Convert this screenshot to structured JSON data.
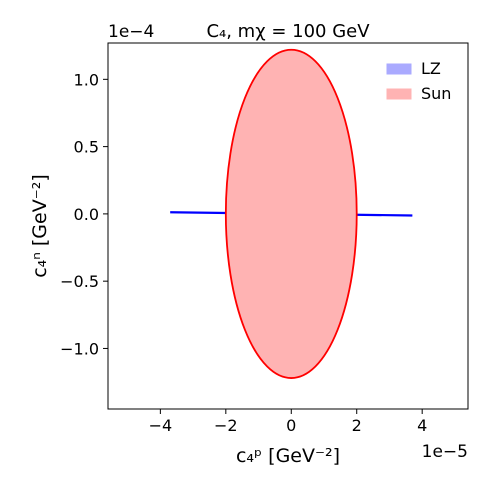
{
  "chart_data": {
    "type": "area",
    "title": "C₄,   mχ = 100 GeV",
    "xlabel": "c₄ᵖ [GeV⁻²]",
    "ylabel": "c₄ⁿ [GeV⁻²]",
    "x_offset_text": "1e−5",
    "y_offset_text": "1e−4",
    "xlim": [
      -5.6e-05,
      5.4e-05
    ],
    "ylim": [
      -0.000145,
      0.000127
    ],
    "x_ticks": [
      -4e-05,
      -2e-05,
      0,
      2e-05,
      4e-05
    ],
    "x_tick_labels": [
      "−4",
      "−2",
      "0",
      "2",
      "4"
    ],
    "y_ticks": [
      0.0001,
      5e-05,
      0,
      -5e-05,
      -0.0001
    ],
    "y_tick_labels": [
      "1.0",
      "0.5",
      "0.0",
      "−0.5",
      "−1.0"
    ],
    "grid": false,
    "legend_position": "top-right",
    "series": [
      {
        "name": "LZ",
        "shape": "line",
        "color": "#0000ff",
        "fill": "#aaaaff",
        "x": [
          -3.7e-05,
          3.7e-05
        ],
        "y": [
          1.2e-06,
          -1.2e-06
        ]
      },
      {
        "name": "Sun",
        "shape": "ellipse",
        "color": "#ff0000",
        "fill": "#ffb3b3",
        "center": [
          0,
          0
        ],
        "x_semi_axis": 2e-05,
        "y_semi_axis": 0.000122
      }
    ]
  }
}
